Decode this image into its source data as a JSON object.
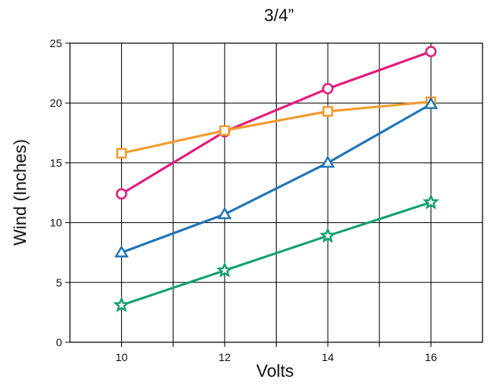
{
  "chart_data": {
    "type": "line",
    "title": "3/4”",
    "xlabel": "Volts",
    "ylabel": "Wind (Inches)",
    "x": [
      10,
      12,
      14,
      16
    ],
    "xlim": [
      9,
      17
    ],
    "ylim": [
      0,
      25
    ],
    "xticks": [
      10,
      12,
      14,
      16
    ],
    "yticks": [
      0,
      5,
      10,
      15,
      20,
      25
    ],
    "grid": true,
    "legend": "none",
    "series": [
      {
        "color": "#e5177c",
        "marker": "circle",
        "values": [
          12.4,
          17.6,
          21.2,
          24.3
        ]
      },
      {
        "color": "#f39a2c",
        "marker": "square",
        "values": [
          15.8,
          17.7,
          19.3,
          20.1
        ]
      },
      {
        "color": "#1f74b8",
        "marker": "triangle",
        "values": [
          7.5,
          10.7,
          15.0,
          19.9
        ]
      },
      {
        "color": "#13a06f",
        "marker": "star",
        "values": [
          3.1,
          6.0,
          8.9,
          11.7
        ]
      }
    ]
  }
}
